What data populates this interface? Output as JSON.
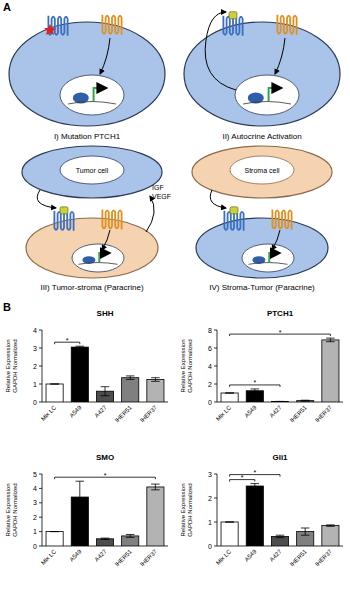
{
  "panel_labels": [
    "A",
    "B"
  ],
  "diagram": {
    "panels": [
      {
        "label": "I) Mutation PTCH1"
      },
      {
        "label": "II) Autocrine Activation"
      },
      {
        "label": "III) Tumor-stroma (Paracrine)",
        "cell_labels": [
          "Tumor cell"
        ],
        "factors": [
          "IGF",
          "VEGF"
        ]
      },
      {
        "label": "IV) Stroma-Tumor (Paracrine)",
        "cell_labels": [
          "Stroma cell"
        ]
      }
    ]
  },
  "chart_data": [
    {
      "type": "bar",
      "title": "SHH",
      "y_label": [
        "Relative Expression",
        "GAPDH Normalized"
      ],
      "categories": [
        "Mix LC",
        "A549",
        "A427",
        "IHER51",
        "IHER37"
      ],
      "values": [
        1,
        3.05,
        0.6,
        1.35,
        1.25
      ],
      "errors": [
        0,
        0.05,
        0.25,
        0.1,
        0.1
      ],
      "colors": [
        "#ffffff",
        "#000000",
        "#4d4d4d",
        "#808080",
        "#b3b3b3"
      ],
      "ylim": [
        0,
        4
      ],
      "yticks": [
        0,
        1,
        2,
        3,
        4
      ],
      "annotations": [
        {
          "between": [
            "Mix LC",
            "A549"
          ],
          "text": "*"
        }
      ]
    },
    {
      "type": "bar",
      "title": "PTCH1",
      "y_label": [
        "Relative Expression",
        "GAPDH Normalized"
      ],
      "categories": [
        "Mix LC",
        "A549",
        "A427",
        "IHER51",
        "IHER37"
      ],
      "values": [
        1,
        1.25,
        0.05,
        0.15,
        6.9
      ],
      "errors": [
        0,
        0.2,
        0.02,
        0.05,
        0.2
      ],
      "colors": [
        "#ffffff",
        "#000000",
        "#4d4d4d",
        "#808080",
        "#b3b3b3"
      ],
      "ylim": [
        0,
        8
      ],
      "yticks": [
        0,
        2,
        4,
        6,
        8
      ],
      "annotations": [
        {
          "between": [
            "Mix LC",
            "A427"
          ],
          "text": "*"
        },
        {
          "between": [
            "Mix LC",
            "IHER37"
          ],
          "text": "*"
        }
      ]
    },
    {
      "type": "bar",
      "title": "SMO",
      "y_label": [
        "Relative Expression",
        "GAPDH Normalized"
      ],
      "categories": [
        "Mix LC",
        "A549",
        "A427",
        "IHER51",
        "IHER37"
      ],
      "values": [
        1,
        3.4,
        0.5,
        0.7,
        4.1
      ],
      "errors": [
        0,
        1.1,
        0.05,
        0.1,
        0.2
      ],
      "colors": [
        "#ffffff",
        "#000000",
        "#4d4d4d",
        "#808080",
        "#b3b3b3"
      ],
      "ylim": [
        0,
        5
      ],
      "yticks": [
        0,
        1,
        2,
        3,
        4,
        5
      ],
      "annotations": [
        {
          "between": [
            "Mix LC",
            "IHER37"
          ],
          "text": "*"
        }
      ]
    },
    {
      "type": "bar",
      "title": "Gli1",
      "y_label": [
        "Relative Expression",
        "GAPDH Normalized"
      ],
      "categories": [
        "Mix LC",
        "A549",
        "A427",
        "IHER51",
        "IHER37"
      ],
      "values": [
        1,
        2.5,
        0.4,
        0.6,
        0.85
      ],
      "errors": [
        0,
        0.1,
        0.05,
        0.15,
        0.03
      ],
      "colors": [
        "#ffffff",
        "#000000",
        "#4d4d4d",
        "#808080",
        "#b3b3b3"
      ],
      "ylim": [
        0,
        3
      ],
      "yticks": [
        0,
        1,
        2,
        3
      ],
      "annotations": [
        {
          "between": [
            "Mix LC",
            "A549"
          ],
          "text": "*"
        },
        {
          "between": [
            "Mix LC",
            "A427"
          ],
          "text": "*"
        }
      ]
    }
  ]
}
